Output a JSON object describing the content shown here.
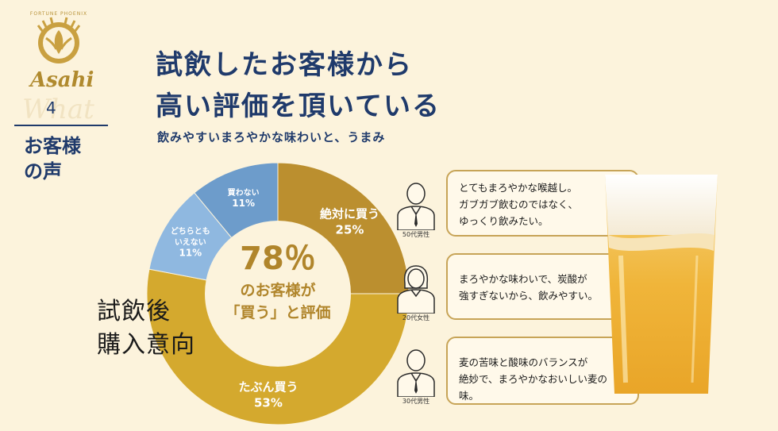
{
  "brand": {
    "tagline": "FORTUNE PHOENIX",
    "name": "Asahi"
  },
  "section": {
    "what_word": "What",
    "number": "4",
    "title_line1": "お客様",
    "title_line2": "の声"
  },
  "headline": {
    "line1": "試飲したお客様から",
    "line2": "高い評価を頂いている"
  },
  "subhead": "飲みやすいまろやかな味わいと、うまみ",
  "chart_label": {
    "line1": "試飲後",
    "line2": "購入意向"
  },
  "center": {
    "percent": "78％",
    "line2": "のお客様が",
    "line3": "「買う」と評価"
  },
  "chart_data": {
    "type": "pie",
    "slices": [
      {
        "label_lines": [
          "絶対に買う"
        ],
        "value": 25,
        "value_label": "25%",
        "color": "#bb8f2f"
      },
      {
        "label_lines": [
          "たぶん買う"
        ],
        "value": 53,
        "value_label": "53%",
        "color": "#d4a92e"
      },
      {
        "label_lines": [
          "どちらとも",
          "いえない"
        ],
        "value": 11,
        "value_label": "11%",
        "color": "#8fb8e0"
      },
      {
        "label_lines": [
          "買わない"
        ],
        "value": 11,
        "value_label": "11%",
        "color": "#6d9ccb"
      }
    ]
  },
  "comments": [
    {
      "lines": [
        "とてもまろやかな喉越し。",
        "ガブガブ飲むのではなく、",
        "ゆっくり飲みたい。"
      ],
      "person": "50代男性"
    },
    {
      "lines": [
        "まろやかな味わいで、炭酸が",
        "強すぎないから、飲みやすい。"
      ],
      "person": "20代女性"
    },
    {
      "lines": [
        "麦の苦味と酸味のバランスが",
        "絶妙で、まろやかなおいしい麦の味。"
      ],
      "person": "30代男性"
    }
  ]
}
